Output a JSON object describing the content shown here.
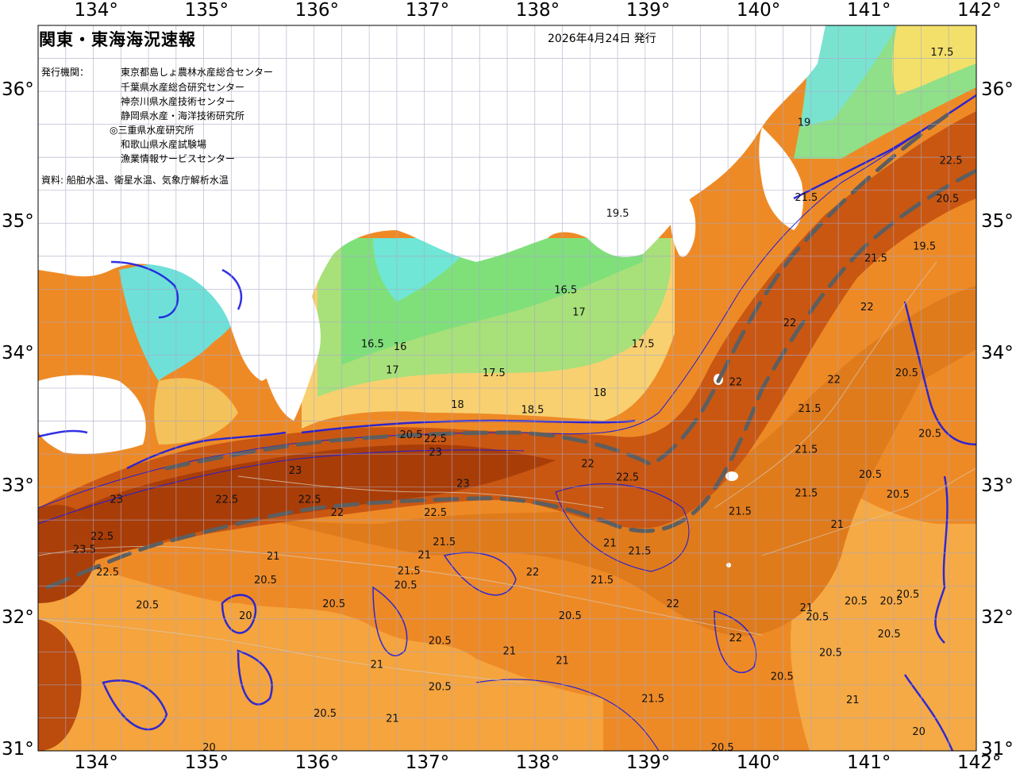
{
  "header": {
    "title": "関東・東海海況速報",
    "issue_date": "2026年4月24日 発行",
    "issuer_label": "発行機関：",
    "issuers": [
      "東京都島しょ農林水産総合センター",
      "千葉県水産総合研究センター",
      "神奈川県水産技術センター",
      "静岡県水産・海洋技術研究所",
      "◎三重県水産研究所",
      "和歌山県水産試験場",
      "漁業情報サービスセンター"
    ],
    "source": "資料: 船舶水温、衛星水温、気象庁解析水温"
  },
  "axes": {
    "lon_labels": [
      "134°",
      "135°",
      "136°",
      "137°",
      "138°",
      "139°",
      "140°",
      "141°",
      "142°"
    ],
    "lat_labels": [
      "36°",
      "35°",
      "34°",
      "33°",
      "32°",
      "31°"
    ],
    "lon_range": [
      133.5,
      142
    ],
    "lat_range": [
      31,
      36.5
    ]
  },
  "contour_labels": [
    {
      "t": "17.5",
      "lon": 141.69,
      "lat": 36.27
    },
    {
      "t": "19.5",
      "lon": 138.75,
      "lat": 35.05
    },
    {
      "t": "16.5",
      "lon": 138.28,
      "lat": 34.47
    },
    {
      "t": "17",
      "lon": 138.4,
      "lat": 34.3
    },
    {
      "t": "17.5",
      "lon": 138.98,
      "lat": 34.06
    },
    {
      "t": "16.5",
      "lon": 136.53,
      "lat": 34.06
    },
    {
      "t": "16",
      "lon": 136.78,
      "lat": 34.04
    },
    {
      "t": "17",
      "lon": 136.71,
      "lat": 33.86
    },
    {
      "t": "17.5",
      "lon": 137.63,
      "lat": 33.84
    },
    {
      "t": "18",
      "lon": 138.59,
      "lat": 33.69
    },
    {
      "t": "18",
      "lon": 137.3,
      "lat": 33.6
    },
    {
      "t": "18.5",
      "lon": 137.98,
      "lat": 33.56
    },
    {
      "t": "20.5",
      "lon": 136.88,
      "lat": 33.37
    },
    {
      "t": "22.5",
      "lon": 137.1,
      "lat": 33.34
    },
    {
      "t": "23",
      "lon": 137.1,
      "lat": 33.24
    },
    {
      "t": "23",
      "lon": 135.83,
      "lat": 33.1
    },
    {
      "t": "23",
      "lon": 137.35,
      "lat": 33.0
    },
    {
      "t": "23",
      "lon": 134.21,
      "lat": 32.88
    },
    {
      "t": "22.5",
      "lon": 135.21,
      "lat": 32.88
    },
    {
      "t": "22.5",
      "lon": 135.96,
      "lat": 32.88
    },
    {
      "t": "22.5",
      "lon": 137.1,
      "lat": 32.78
    },
    {
      "t": "22",
      "lon": 136.21,
      "lat": 32.78
    },
    {
      "t": "22",
      "lon": 138.48,
      "lat": 33.15
    },
    {
      "t": "22.5",
      "lon": 138.84,
      "lat": 33.05
    },
    {
      "t": "23.5",
      "lon": 133.92,
      "lat": 32.5
    },
    {
      "t": "22.5",
      "lon": 134.08,
      "lat": 32.6
    },
    {
      "t": "22.5",
      "lon": 134.13,
      "lat": 32.33
    },
    {
      "t": "21",
      "lon": 135.63,
      "lat": 32.45
    },
    {
      "t": "21.5",
      "lon": 136.86,
      "lat": 32.34
    },
    {
      "t": "21",
      "lon": 137.0,
      "lat": 32.46
    },
    {
      "t": "22",
      "lon": 137.98,
      "lat": 32.33
    },
    {
      "t": "21.5",
      "lon": 137.18,
      "lat": 32.56
    },
    {
      "t": "21.5",
      "lon": 138.61,
      "lat": 32.27
    },
    {
      "t": "21",
      "lon": 138.68,
      "lat": 32.55
    },
    {
      "t": "21.5",
      "lon": 138.95,
      "lat": 32.49
    },
    {
      "t": "20.5",
      "lon": 135.56,
      "lat": 32.27
    },
    {
      "t": "20.5",
      "lon": 134.49,
      "lat": 32.08
    },
    {
      "t": "20.5",
      "lon": 136.18,
      "lat": 32.09
    },
    {
      "t": "20.5",
      "lon": 136.83,
      "lat": 32.23
    },
    {
      "t": "20.5",
      "lon": 138.32,
      "lat": 32.0
    },
    {
      "t": "20.5",
      "lon": 137.14,
      "lat": 31.81
    },
    {
      "t": "20.5",
      "lon": 137.14,
      "lat": 31.46
    },
    {
      "t": "20.5",
      "lon": 136.1,
      "lat": 31.26
    },
    {
      "t": "21",
      "lon": 136.57,
      "lat": 31.63
    },
    {
      "t": "21",
      "lon": 136.71,
      "lat": 31.22
    },
    {
      "t": "21",
      "lon": 137.77,
      "lat": 31.73
    },
    {
      "t": "21",
      "lon": 138.25,
      "lat": 31.66
    },
    {
      "t": "21.5",
      "lon": 139.07,
      "lat": 31.37
    },
    {
      "t": "22",
      "lon": 139.25,
      "lat": 32.09
    },
    {
      "t": "22",
      "lon": 139.82,
      "lat": 31.83
    },
    {
      "t": "21.5",
      "lon": 139.86,
      "lat": 32.79
    },
    {
      "t": "21",
      "lon": 140.74,
      "lat": 32.69
    },
    {
      "t": "21.5",
      "lon": 140.46,
      "lat": 32.93
    },
    {
      "t": "21.5",
      "lon": 140.46,
      "lat": 33.26
    },
    {
      "t": "21.5",
      "lon": 140.49,
      "lat": 33.57
    },
    {
      "t": "20.5",
      "lon": 141.04,
      "lat": 33.07
    },
    {
      "t": "20.5",
      "lon": 141.29,
      "lat": 32.92
    },
    {
      "t": "21",
      "lon": 140.46,
      "lat": 32.06
    },
    {
      "t": "20.5",
      "lon": 140.56,
      "lat": 31.99
    },
    {
      "t": "20.5",
      "lon": 140.91,
      "lat": 32.11
    },
    {
      "t": "20.5",
      "lon": 141.23,
      "lat": 32.11
    },
    {
      "t": "20.5",
      "lon": 141.38,
      "lat": 32.16
    },
    {
      "t": "20.5",
      "lon": 140.24,
      "lat": 31.54
    },
    {
      "t": "20.5",
      "lon": 140.68,
      "lat": 31.72
    },
    {
      "t": "20.5",
      "lon": 141.21,
      "lat": 31.86
    },
    {
      "t": "21",
      "lon": 140.88,
      "lat": 31.36
    },
    {
      "t": "22",
      "lon": 139.82,
      "lat": 33.77
    },
    {
      "t": "22",
      "lon": 140.71,
      "lat": 33.79
    },
    {
      "t": "22",
      "lon": 140.31,
      "lat": 34.22
    },
    {
      "t": "22",
      "lon": 141.01,
      "lat": 34.34
    },
    {
      "t": "21.5",
      "lon": 141.09,
      "lat": 34.71
    },
    {
      "t": "20.5",
      "lon": 141.74,
      "lat": 35.16
    },
    {
      "t": "19.5",
      "lon": 141.53,
      "lat": 34.8
    },
    {
      "t": "22.5",
      "lon": 141.77,
      "lat": 35.45
    },
    {
      "t": "21.5",
      "lon": 140.46,
      "lat": 35.17
    },
    {
      "t": "20.5",
      "lon": 141.37,
      "lat": 33.84
    },
    {
      "t": "20.5",
      "lon": 141.58,
      "lat": 33.38
    },
    {
      "t": "20.5",
      "lon": 139.7,
      "lat": 31.0
    },
    {
      "t": "20",
      "lon": 135.05,
      "lat": 31.0
    },
    {
      "t": "20",
      "lon": 135.38,
      "lat": 32.0
    },
    {
      "t": "20",
      "lon": 141.48,
      "lat": 31.12
    },
    {
      "t": "19",
      "lon": 140.44,
      "lat": 35.74
    }
  ]
}
